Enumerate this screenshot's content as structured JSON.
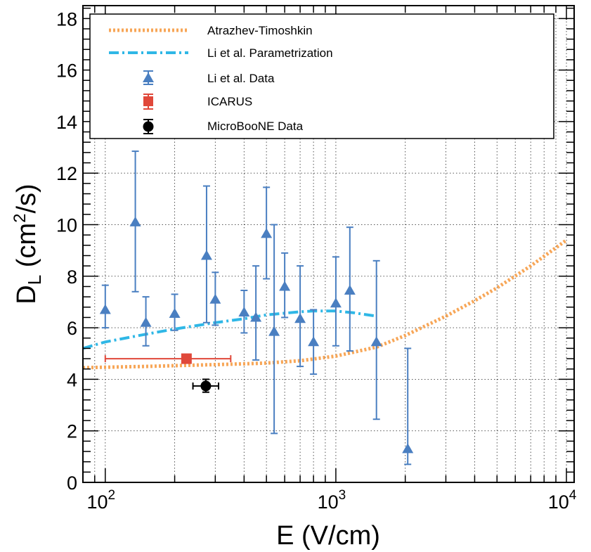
{
  "chart_data": {
    "type": "scatter",
    "xlabel": "E (V/cm)",
    "ylabel": "D_L (cm²/s)",
    "xscale": "log",
    "xlim": [
      80,
      10800
    ],
    "ylim": [
      0,
      18.5
    ],
    "grid": true,
    "legend_position": "top",
    "x_ticks": [
      {
        "value": 100,
        "base": "10",
        "exp": "2"
      },
      {
        "value": 1000,
        "base": "10",
        "exp": "3"
      },
      {
        "value": 10000,
        "base": "10",
        "exp": "4"
      }
    ],
    "y_ticks": [
      0,
      2,
      4,
      6,
      8,
      10,
      12,
      14,
      16,
      18
    ],
    "series": [
      {
        "name": "Atrazhev-Timoshkin",
        "kind": "curve",
        "style": "dotted",
        "color": "#F7A657",
        "points": [
          [
            80,
            4.45
          ],
          [
            100,
            4.47
          ],
          [
            150,
            4.5
          ],
          [
            200,
            4.53
          ],
          [
            300,
            4.57
          ],
          [
            400,
            4.6
          ],
          [
            500,
            4.63
          ],
          [
            700,
            4.72
          ],
          [
            1000,
            4.9
          ],
          [
            1500,
            5.25
          ],
          [
            2000,
            5.7
          ],
          [
            3000,
            6.45
          ],
          [
            4000,
            7.05
          ],
          [
            5000,
            7.55
          ],
          [
            7000,
            8.4
          ],
          [
            10000,
            9.4
          ]
        ]
      },
      {
        "name": "Li et al. Parametrization",
        "kind": "curve",
        "style": "dash-dot",
        "color": "#2FB7E6",
        "points": [
          [
            80,
            5.2
          ],
          [
            100,
            5.45
          ],
          [
            150,
            5.75
          ],
          [
            200,
            5.95
          ],
          [
            300,
            6.2
          ],
          [
            400,
            6.35
          ],
          [
            500,
            6.5
          ],
          [
            700,
            6.62
          ],
          [
            800,
            6.65
          ],
          [
            1000,
            6.65
          ],
          [
            1200,
            6.58
          ],
          [
            1500,
            6.45
          ]
        ]
      },
      {
        "name": "Li et al. Data",
        "kind": "points",
        "marker": "triangle",
        "color": "#4A7FC1",
        "points": [
          {
            "x": 100,
            "y": 6.7,
            "ylo": 6.0,
            "yhi": 7.65
          },
          {
            "x": 135,
            "y": 10.1,
            "ylo": 7.4,
            "yhi": 12.85
          },
          {
            "x": 150,
            "y": 6.2,
            "ylo": 5.3,
            "yhi": 7.2
          },
          {
            "x": 200,
            "y": 6.55,
            "ylo": 5.9,
            "yhi": 7.3
          },
          {
            "x": 275,
            "y": 8.8,
            "ylo": 6.2,
            "yhi": 11.5
          },
          {
            "x": 300,
            "y": 7.1,
            "ylo": 6.1,
            "yhi": 8.15
          },
          {
            "x": 400,
            "y": 6.6,
            "ylo": 5.8,
            "yhi": 7.45
          },
          {
            "x": 450,
            "y": 6.4,
            "ylo": 4.75,
            "yhi": 8.4
          },
          {
            "x": 500,
            "y": 9.65,
            "ylo": 7.9,
            "yhi": 11.45
          },
          {
            "x": 540,
            "y": 5.85,
            "ylo": 1.9,
            "yhi": 10.0
          },
          {
            "x": 600,
            "y": 7.6,
            "ylo": 6.4,
            "yhi": 8.9
          },
          {
            "x": 700,
            "y": 6.35,
            "ylo": 4.5,
            "yhi": 8.4
          },
          {
            "x": 800,
            "y": 5.45,
            "ylo": 4.2,
            "yhi": 6.7
          },
          {
            "x": 1000,
            "y": 6.95,
            "ylo": 5.3,
            "yhi": 8.75
          },
          {
            "x": 1150,
            "y": 7.45,
            "ylo": 5.1,
            "yhi": 9.9
          },
          {
            "x": 1500,
            "y": 5.45,
            "ylo": 2.45,
            "yhi": 8.6
          },
          {
            "x": 2050,
            "y": 1.3,
            "ylo": 0.7,
            "yhi": 5.2
          }
        ]
      },
      {
        "name": "ICARUS",
        "kind": "points",
        "marker": "square",
        "color": "#E0483A",
        "points": [
          {
            "x": 225,
            "y": 4.8,
            "xlo": 100,
            "xhi": 350
          }
        ]
      },
      {
        "name": "MicroBooNE Data",
        "kind": "points",
        "marker": "circle",
        "color": "#000000",
        "points": [
          {
            "x": 273,
            "y": 3.74,
            "xlo": 240,
            "xhi": 310,
            "ylo": 3.5,
            "yhi": 4.0
          }
        ]
      }
    ]
  }
}
